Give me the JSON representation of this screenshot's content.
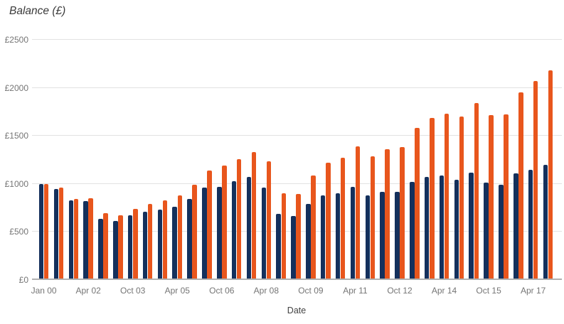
{
  "chart_data": {
    "type": "bar",
    "title": "Balance (£)",
    "xlabel": "Date",
    "ylabel": "Balance (£)",
    "ylim": [
      0,
      2500
    ],
    "grid": "horizontal",
    "legend": "none",
    "y_tick_values": [
      0,
      500,
      1000,
      1500,
      2000,
      2500
    ],
    "y_tick_labels": [
      "£0",
      "£500",
      "£1000",
      "£1500",
      "£2000",
      "£2500"
    ],
    "x_tick_labels": [
      "Jan 00",
      "Apr 02",
      "Oct 03",
      "Apr 05",
      "Oct 06",
      "Apr 08",
      "Oct 09",
      "Apr 11",
      "Oct 12",
      "Apr 14",
      "Oct 15",
      "Apr 17"
    ],
    "x_tick_every_n_pairs": 3,
    "n_pairs": 35,
    "series": [
      {
        "name": "navy",
        "color": "#14305C",
        "values": [
          995,
          950,
          830,
          820,
          635,
          615,
          675,
          710,
          730,
          760,
          845,
          960,
          970,
          1025,
          1070,
          965,
          690,
          665,
          795,
          880,
          905,
          970,
          880,
          915,
          920,
          1020,
          1070,
          1085,
          1040,
          1115,
          1015,
          990,
          1110,
          1145,
          1195
        ]
      },
      {
        "name": "orange",
        "color": "#E8561D",
        "values": [
          1000,
          960,
          845,
          850,
          695,
          670,
          740,
          790,
          830,
          880,
          990,
          1140,
          1190,
          1260,
          1335,
          1235,
          905,
          895,
          1085,
          1220,
          1275,
          1390,
          1290,
          1360,
          1385,
          1585,
          1685,
          1730,
          1700,
          1845,
          1715,
          1720,
          1955,
          2070,
          2185
        ]
      }
    ]
  },
  "colors": {
    "background": "#ffffff",
    "title_text": "#3a3a3a",
    "axis_text": "#757575",
    "gridline": "#e2e2e2",
    "axis_line": "#b1b1b1"
  }
}
